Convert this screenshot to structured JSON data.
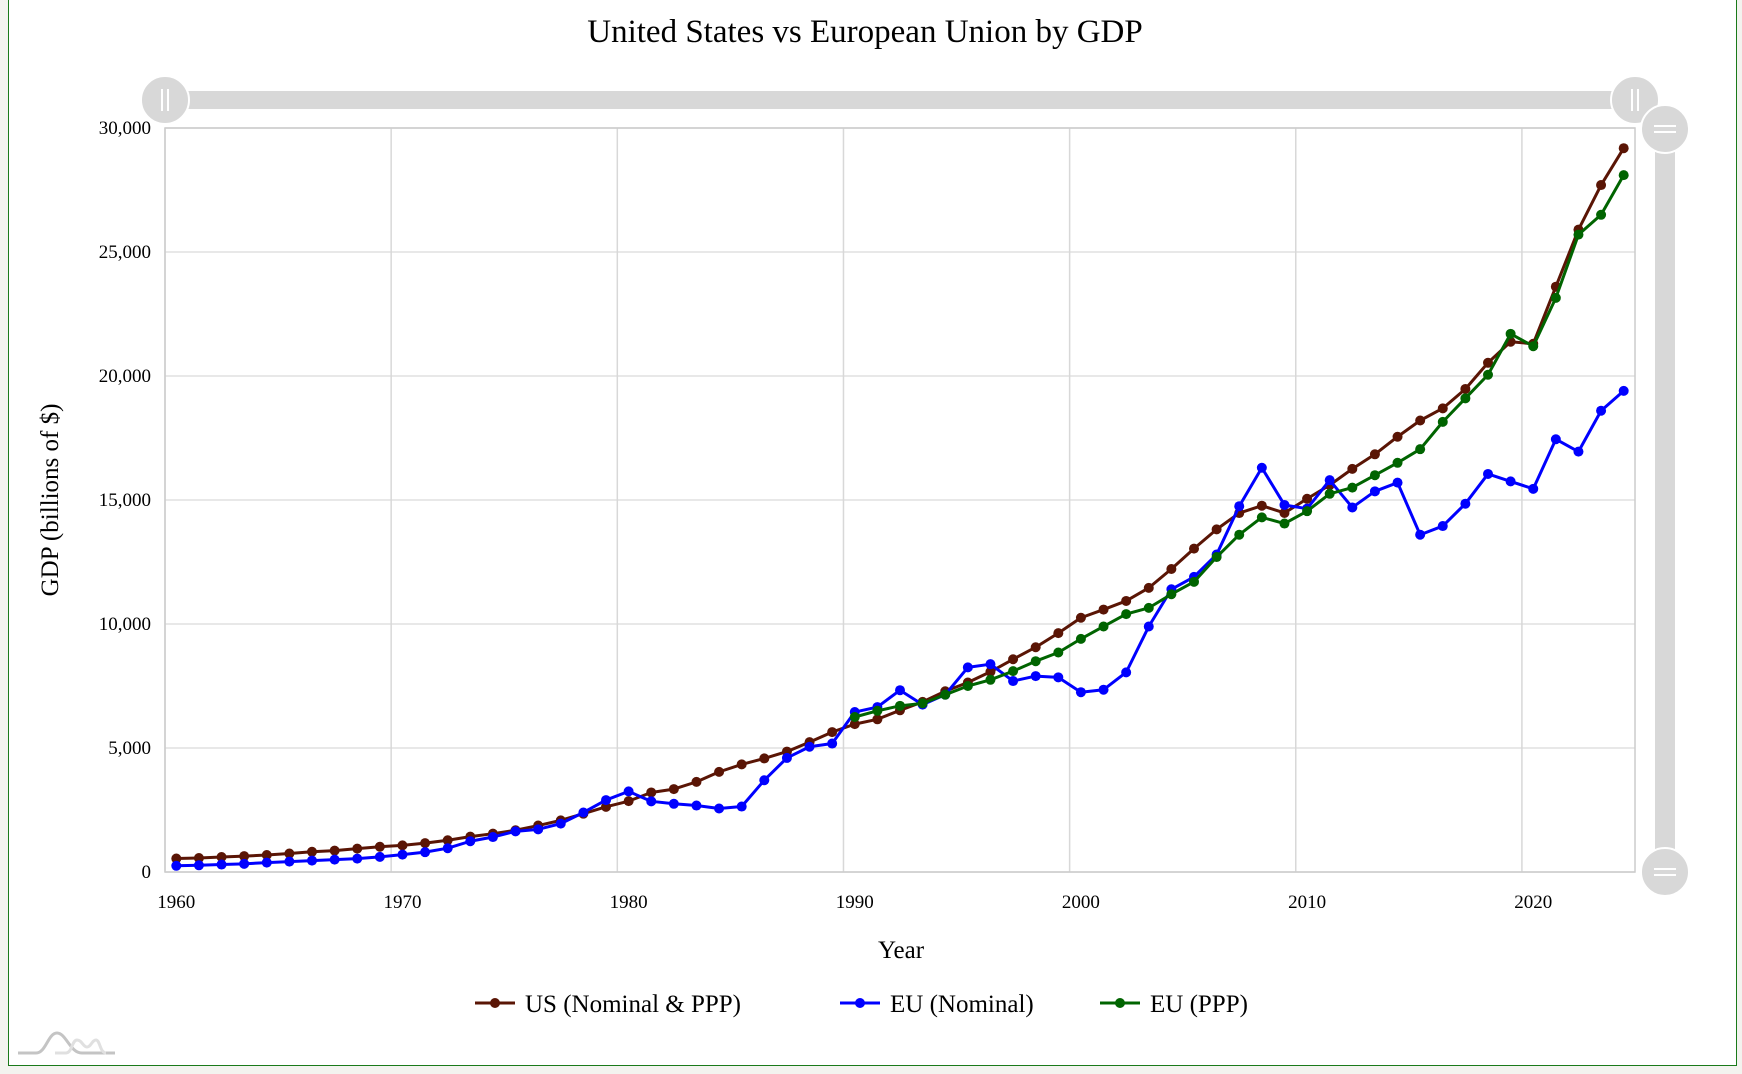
{
  "chart_data": {
    "type": "line",
    "title": "United States vs European Union by GDP",
    "xlabel": "Year",
    "ylabel": "GDP (billions of $)",
    "xlim": [
      1960,
      2025
    ],
    "ylim": [
      0,
      30000
    ],
    "x_ticks": [
      "1960",
      "1970",
      "1980",
      "1990",
      "2000",
      "2010",
      "2020"
    ],
    "y_ticks": [
      "0",
      "5,000",
      "10,000",
      "15,000",
      "20,000",
      "25,000",
      "30,000"
    ],
    "y_tick_values": [
      0,
      5000,
      10000,
      15000,
      20000,
      25000,
      30000
    ],
    "grid": true,
    "legend_position": "bottom-center",
    "series": [
      {
        "name": "US (Nominal & PPP)",
        "color": "#5a1505",
        "start_year": 1960,
        "values": [
          543,
          563,
          605,
          638,
          686,
          744,
          815,
          862,
          943,
          1019,
          1073,
          1165,
          1280,
          1425,
          1545,
          1684,
          1873,
          2082,
          2352,
          2627,
          2857,
          3207,
          3343,
          3634,
          4037,
          4339,
          4580,
          4855,
          5236,
          5642,
          5963,
          6158,
          6520,
          6859,
          7287,
          7640,
          8073,
          8578,
          9063,
          9631,
          10251,
          10582,
          10929,
          11457,
          12217,
          13039,
          13816,
          14474,
          14770,
          14478,
          15049,
          15600,
          16254,
          16843,
          17551,
          18206,
          18695,
          19477,
          20533,
          21381,
          21300,
          23600,
          25900,
          27700,
          29185
        ]
      },
      {
        "name": "EU (Nominal)",
        "color": "#0000ff",
        "start_year": 1960,
        "values": [
          250,
          270,
          300,
          330,
          380,
          420,
          460,
          500,
          540,
          610,
          700,
          800,
          960,
          1240,
          1410,
          1640,
          1720,
          1950,
          2400,
          2900,
          3250,
          2850,
          2750,
          2680,
          2560,
          2640,
          3700,
          4600,
          5050,
          5180,
          6450,
          6650,
          7330,
          6750,
          7150,
          8250,
          8380,
          7700,
          7900,
          7850,
          7250,
          7350,
          8050,
          9900,
          11400,
          11900,
          12800,
          14750,
          16300,
          14800,
          14650,
          15800,
          14700,
          15350,
          15700,
          13600,
          13950,
          14850,
          16050,
          15750,
          15450,
          17450,
          16950,
          18600,
          19400
        ]
      },
      {
        "name": "EU (PPP)",
        "color": "#006400",
        "start_year": 1990,
        "values": [
          6250,
          6500,
          6700,
          6800,
          7150,
          7500,
          7750,
          8100,
          8500,
          8850,
          9400,
          9900,
          10400,
          10650,
          11200,
          11700,
          12700,
          13600,
          14300,
          14050,
          14550,
          15250,
          15500,
          16000,
          16500,
          17050,
          18150,
          19100,
          20050,
          21700,
          21200,
          23150,
          25700,
          26500,
          28100
        ]
      }
    ]
  }
}
